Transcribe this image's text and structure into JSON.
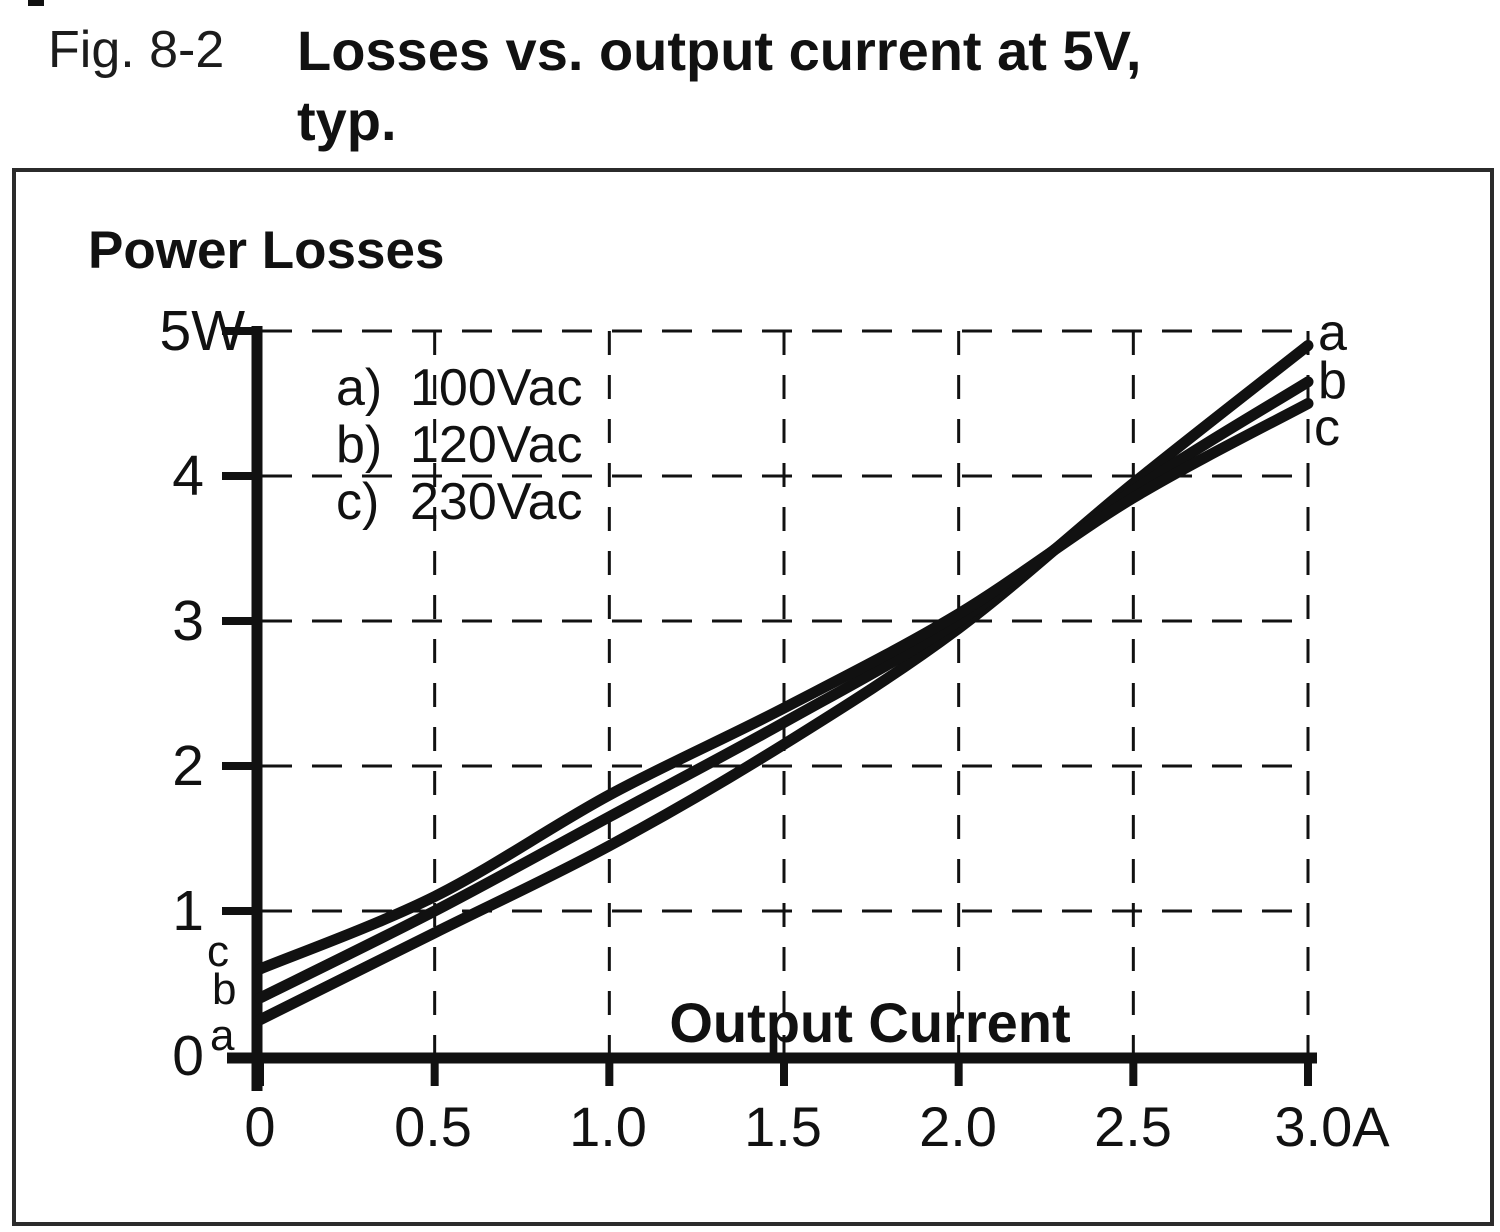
{
  "figure": {
    "label": "Fig. 8-2",
    "title_line1": "Losses vs. output current at 5V,",
    "title_line2": "typ."
  },
  "chart": {
    "y_axis_title": "Power Losses",
    "x_axis_title": "Output Current",
    "y_tick_labels": [
      "5W",
      "4",
      "3",
      "2",
      "1",
      "0"
    ],
    "x_tick_labels": [
      "0",
      "0.5",
      "1.0",
      "1.5",
      "2.0",
      "2.5",
      "3.0A"
    ],
    "legend": [
      {
        "key": "a)",
        "label": "100Vac"
      },
      {
        "key": "b)",
        "label": "120Vac"
      },
      {
        "key": "c)",
        "label": "230Vac"
      }
    ],
    "curve_labels_right": [
      "a",
      "b",
      "c"
    ],
    "curve_labels_left": [
      "c",
      "b",
      "a"
    ]
  },
  "chart_data": {
    "type": "line",
    "title": "Losses vs. output current at 5V, typ.",
    "xlabel": "Output Current",
    "ylabel": "Power Losses",
    "x_unit": "A",
    "y_unit": "W",
    "x": [
      0,
      0.5,
      1.0,
      1.5,
      2.0,
      2.5,
      3.0
    ],
    "series": [
      {
        "name": "a) 100Vac",
        "values": [
          0.25,
          0.85,
          1.45,
          2.15,
          2.95,
          3.95,
          4.9
        ]
      },
      {
        "name": "b) 120Vac",
        "values": [
          0.4,
          1.0,
          1.65,
          2.3,
          3.0,
          3.9,
          4.65
        ]
      },
      {
        "name": "c) 230Vac",
        "values": [
          0.6,
          1.1,
          1.8,
          2.4,
          3.05,
          3.85,
          4.5
        ]
      }
    ],
    "xlim": [
      0,
      3.0
    ],
    "ylim": [
      0,
      5
    ],
    "grid": "dashed",
    "legend_position": "top-left-inside",
    "ink_color": "#111111",
    "frame_color": "#2b2b2b"
  }
}
